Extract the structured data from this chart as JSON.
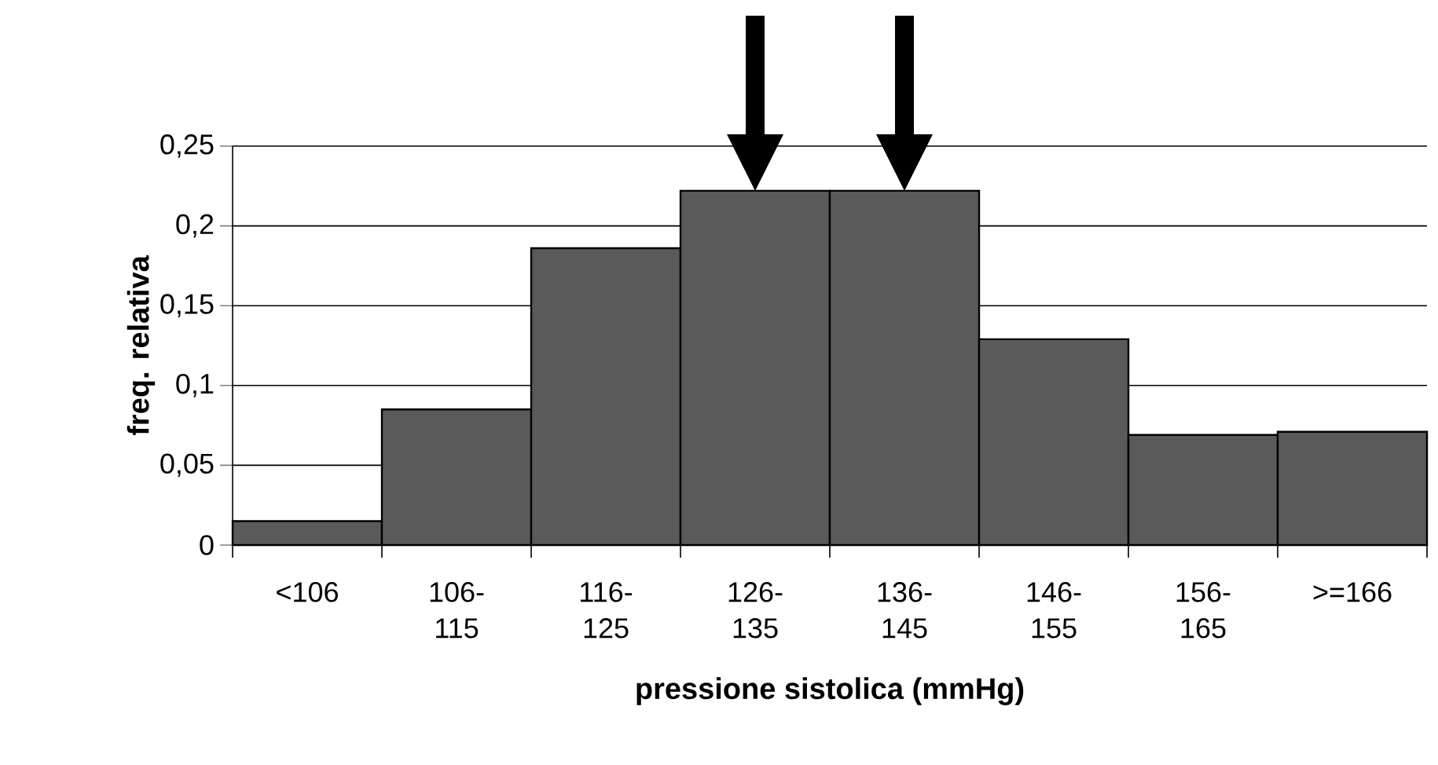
{
  "chart_data": {
    "type": "bar",
    "xlabel": "pressione sistolica (mmHg)",
    "ylabel": "freq. relativa",
    "categories": [
      "<106",
      "106-115",
      "116-125",
      "126-135",
      "136-145",
      "146-155",
      "156-165",
      ">=166"
    ],
    "values": [
      0.015,
      0.085,
      0.186,
      0.222,
      0.222,
      0.129,
      0.069,
      0.071
    ],
    "color": "#5a5a5a",
    "ylim": [
      0,
      0.25
    ],
    "yticks": [
      0,
      {
        "value": 0.05,
        "label": "0,05"
      },
      {
        "value": 0.1,
        "label": "0,1"
      },
      {
        "value": 0.15,
        "label": "0,15"
      },
      {
        "value": 0.2,
        "label": "0,2"
      },
      {
        "value": 0.25,
        "label": "0,25"
      }
    ],
    "grid": "y"
  }
}
